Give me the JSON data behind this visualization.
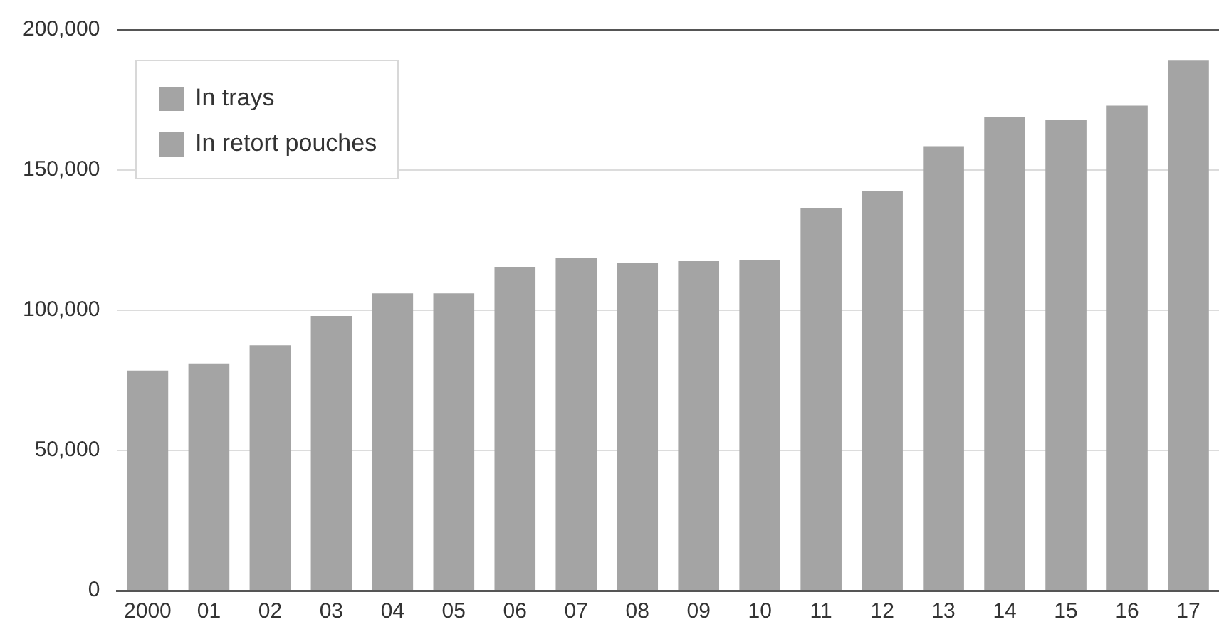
{
  "chart_data": {
    "type": "bar",
    "categories": [
      "2000",
      "01",
      "02",
      "03",
      "04",
      "05",
      "06",
      "07",
      "08",
      "09",
      "10",
      "11",
      "12",
      "13",
      "14",
      "15",
      "16",
      "17"
    ],
    "series": [
      {
        "name": "In trays",
        "color": "#a4a4a4",
        "values": [
          78500,
          81000,
          87500,
          98000,
          106000,
          106000,
          115500,
          118500,
          117000,
          117500,
          118000,
          136500,
          142500,
          158500,
          169000,
          168000,
          173000,
          189000
        ]
      },
      {
        "name": "In retort pouches",
        "color": "#a4a4a4",
        "values": [
          null,
          null,
          null,
          null,
          null,
          null,
          null,
          null,
          null,
          null,
          null,
          null,
          null,
          null,
          null,
          null,
          null,
          null
        ]
      }
    ],
    "ylim": [
      0,
      200000
    ],
    "yticks": [
      0,
      {
        "value": 50000,
        "label": "50,000"
      },
      {
        "value": 100000,
        "label": "100,000"
      },
      {
        "value": 150000,
        "label": "150,000"
      },
      {
        "value": 200000,
        "label": "200,000"
      }
    ],
    "grid": "y",
    "legend": "top left"
  }
}
